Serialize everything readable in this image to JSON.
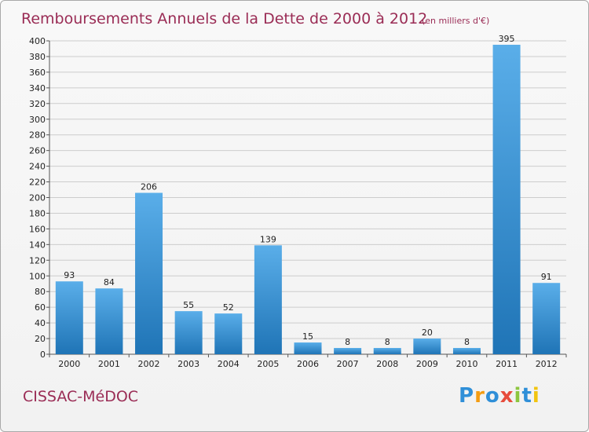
{
  "title": "Remboursements Annuels de la Dette de 2000 à 2012",
  "subtitle": "(en milliers d'€)",
  "commune": "CISSAC-MéDOC",
  "logo": {
    "text": "Proxiti",
    "colors": [
      "#2f8fd8",
      "#f39c12",
      "#2f8fd8",
      "#e74c3c",
      "#8dc63f",
      "#2f8fd8",
      "#f1c40f"
    ]
  },
  "colors": {
    "title": "#9a2c55",
    "bar_top": "#5aaee9",
    "bar_bottom": "#1f74b6",
    "grid": "#cccccc"
  },
  "chart_data": {
    "type": "bar",
    "categories": [
      "2000",
      "2001",
      "2002",
      "2003",
      "2004",
      "2005",
      "2006",
      "2007",
      "2008",
      "2009",
      "2010",
      "2011",
      "2012"
    ],
    "values": [
      93,
      84,
      206,
      55,
      52,
      139,
      15,
      8,
      8,
      20,
      8,
      395,
      91
    ],
    "data_labels": [
      "93",
      "84",
      "206",
      "55",
      "52",
      "139",
      "15",
      "8",
      "8",
      "20",
      "8",
      "395",
      "91"
    ],
    "ylim": [
      0,
      400
    ],
    "yticks": [
      0,
      20,
      40,
      60,
      80,
      100,
      120,
      140,
      160,
      180,
      200,
      220,
      240,
      260,
      280,
      300,
      320,
      340,
      360,
      380,
      400
    ],
    "grid": true
  }
}
